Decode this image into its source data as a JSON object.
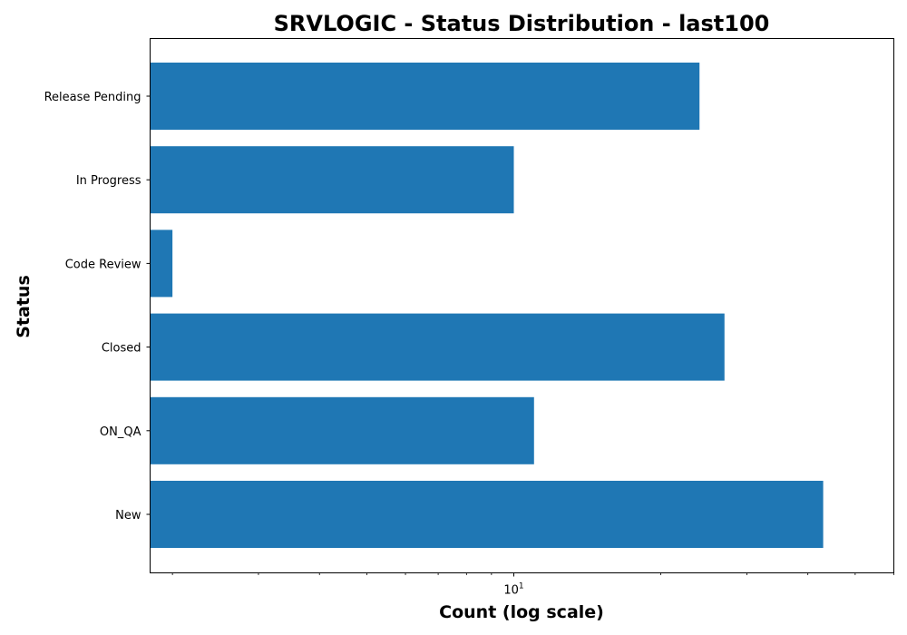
{
  "chart_data": {
    "type": "bar",
    "orientation": "horizontal",
    "title": "SRVLOGIC - Status Distribution - last100",
    "xlabel": "Count (log scale)",
    "ylabel": "Status",
    "x_scale": "log",
    "xlim": [
      1.8,
      60
    ],
    "x_tick_labels": [
      {
        "value": 10,
        "base": "10",
        "exponent": "1"
      }
    ],
    "categories": [
      "Release Pending",
      "In Progress",
      "Code Review",
      "Closed",
      "ON_QA",
      "New"
    ],
    "values": [
      24,
      10,
      2,
      27,
      11,
      43
    ],
    "bar_color": "#1f77b4",
    "grid": false,
    "legend": false
  }
}
